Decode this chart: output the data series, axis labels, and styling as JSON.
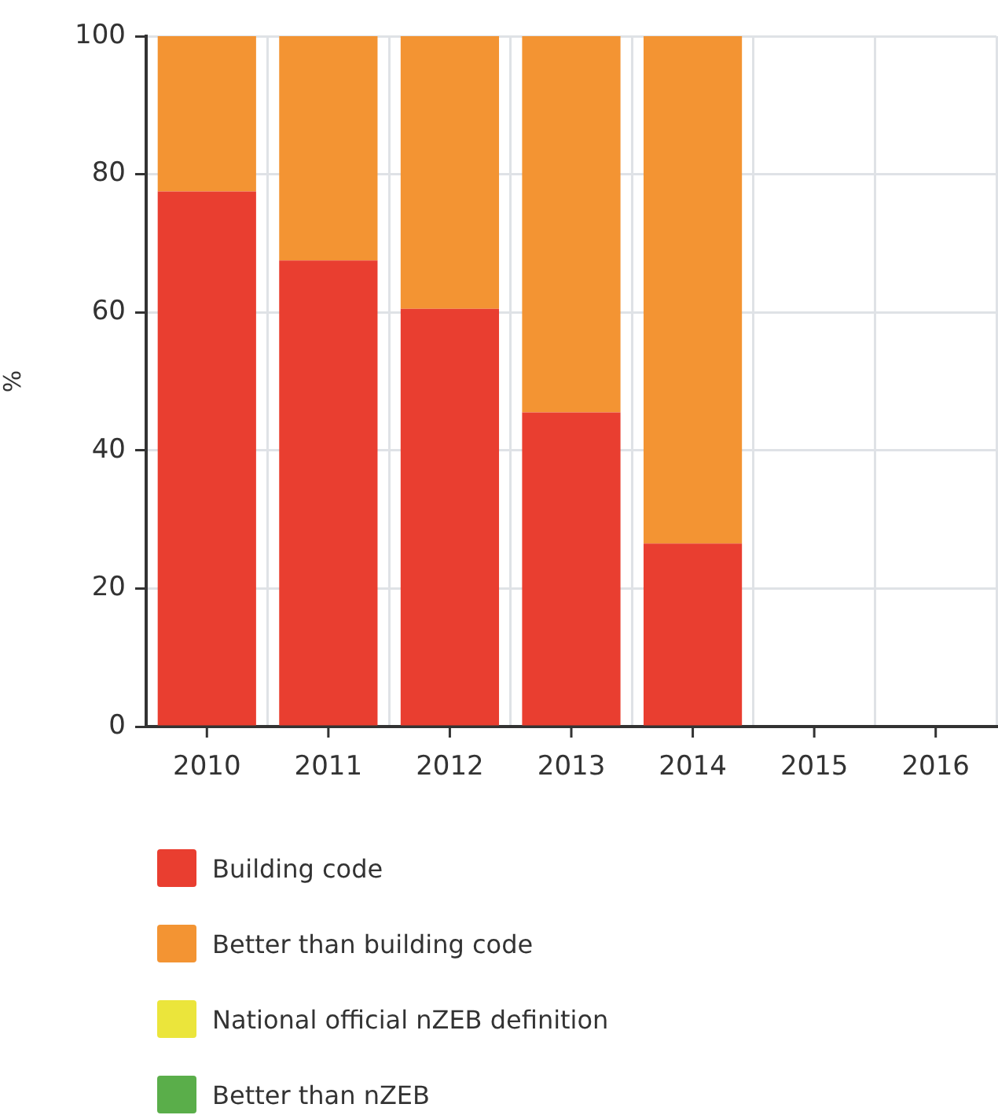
{
  "chart_data": {
    "type": "bar",
    "ylabel": "%",
    "categories": [
      "2010",
      "2011",
      "2012",
      "2013",
      "2014",
      "2015",
      "2016"
    ],
    "series": [
      {
        "name": "Building code",
        "color": "#e93e30",
        "values": [
          77.5,
          67.5,
          60.5,
          45.5,
          26.5,
          null,
          null
        ]
      },
      {
        "name": "Better than building code",
        "color": "#f39433",
        "values": [
          22.5,
          32.5,
          39.5,
          54.5,
          73.5,
          null,
          null
        ]
      },
      {
        "name": "National official nZEB definition",
        "color": "#ebe53b",
        "values": [
          null,
          null,
          null,
          null,
          null,
          null,
          null
        ]
      },
      {
        "name": "Better than nZEB",
        "color": "#5aae4a",
        "values": [
          null,
          null,
          null,
          null,
          null,
          null,
          null
        ]
      }
    ],
    "stacked": true,
    "ylim": [
      0,
      100
    ],
    "yticks": [
      0,
      20,
      40,
      60,
      80,
      100
    ],
    "grid": true,
    "legend": "bottom"
  }
}
